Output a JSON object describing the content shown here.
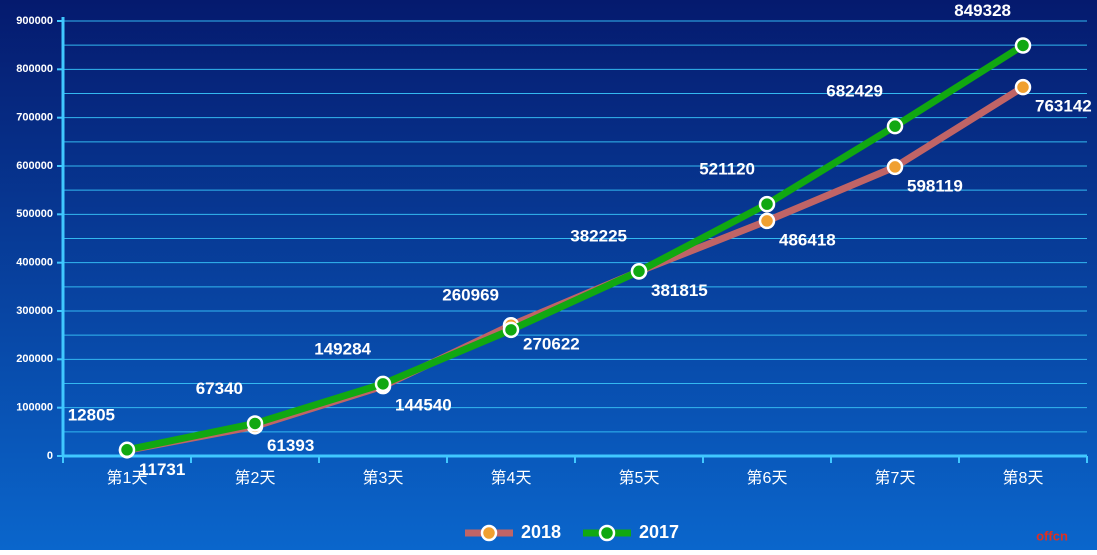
{
  "chart_data": {
    "type": "line",
    "categories": [
      "第1天",
      "第2天",
      "第3天",
      "第4天",
      "第5天",
      "第6天",
      "第7天",
      "第8天"
    ],
    "series": [
      {
        "name": "2018",
        "color": "#c06466",
        "marker_color": "#f0a030",
        "label_position": "below",
        "values": [
          11731,
          61393,
          144540,
          270622,
          381815,
          486418,
          598119,
          763142
        ]
      },
      {
        "name": "2017",
        "color": "#11a811",
        "marker_color": "#11a811",
        "label_position": "above",
        "values": [
          12805,
          67340,
          149284,
          260969,
          382225,
          521120,
          682429,
          849328
        ]
      }
    ],
    "ylim": [
      0,
      900000
    ],
    "yticks": [
      0,
      100000,
      200000,
      300000,
      400000,
      500000,
      600000,
      700000,
      800000,
      900000
    ],
    "minor_yticks": [
      50000,
      150000,
      250000,
      350000,
      450000,
      550000,
      650000,
      750000,
      850000
    ],
    "grid": true,
    "legend": "bottom",
    "watermark": "offcn"
  }
}
